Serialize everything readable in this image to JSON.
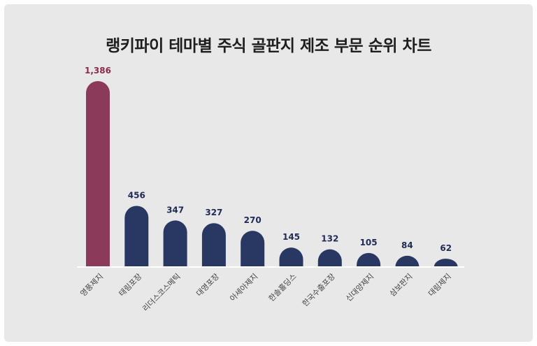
{
  "chart_data": {
    "type": "bar",
    "title": "랭키파이 테마별 주식 골판지 제조 부문 순위 차트",
    "categories": [
      "영풍제지",
      "태림포장",
      "리더스코스메틱",
      "대영포장",
      "아세아제지",
      "한솔홀딩스",
      "한국수출포장",
      "신대양제지",
      "삼보판지",
      "대림제지"
    ],
    "values": [
      1386,
      456,
      347,
      327,
      270,
      145,
      132,
      105,
      84,
      62
    ],
    "value_labels": [
      "1,386",
      "456",
      "347",
      "327",
      "270",
      "145",
      "132",
      "105",
      "84",
      "62"
    ],
    "ylim": [
      0,
      1386
    ],
    "grid": false,
    "legend": "none",
    "colors": {
      "highlight": "#8b3a5a",
      "bar": "#283862",
      "highlight_label": "#8b2a4a",
      "label": "#1f2a55",
      "baseline": "#ffffff",
      "background": "#e8e8e8"
    }
  }
}
